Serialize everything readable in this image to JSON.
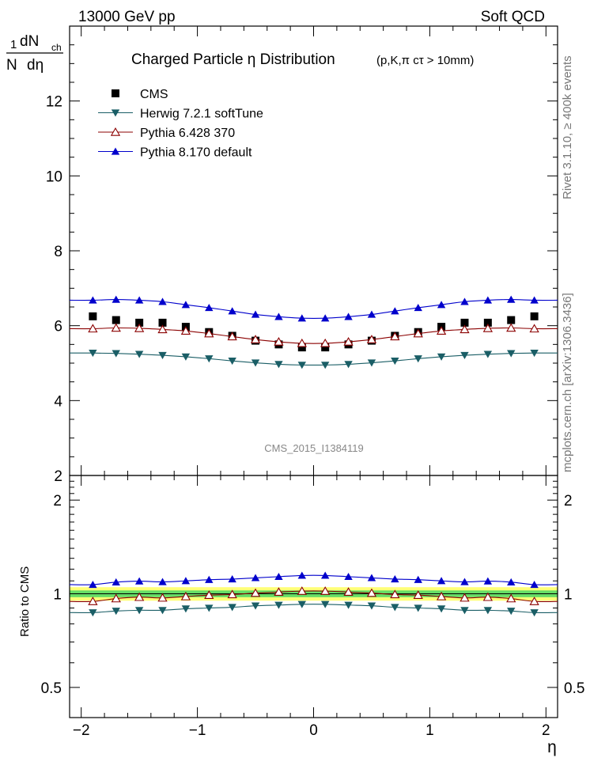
{
  "header": {
    "left": "13000 GeV pp",
    "right": "Soft QCD"
  },
  "side_labels": {
    "right_top": "Rivet 3.1.10, ≥ 400k events",
    "right_bottom": "mcplots.cern.ch [arXiv:1306.3436]"
  },
  "chart_data": [
    {
      "type": "scatter",
      "panel": "main",
      "title": "Charged Particle  η Distribution",
      "subtitle": "(p,K,π cτ > 10mm)",
      "watermark": "CMS_2015_I1384119",
      "ylabel": "1/N dN_ch/dη",
      "ylabel_parts": {
        "one": "1",
        "dn": "dN",
        "ch": "ch",
        "n": "N",
        "deta": "dη"
      },
      "xlim": [
        -2.1,
        2.1
      ],
      "ylim": [
        2,
        14
      ],
      "yticks": [
        2,
        4,
        6,
        8,
        10,
        12
      ],
      "x": [
        -1.9,
        -1.7,
        -1.5,
        -1.3,
        -1.1,
        -0.9,
        -0.7,
        -0.5,
        -0.3,
        -0.1,
        0.1,
        0.3,
        0.5,
        0.7,
        0.9,
        1.1,
        1.3,
        1.5,
        1.7,
        1.9
      ],
      "series": [
        {
          "name": "CMS",
          "marker": "square",
          "color": "#000000",
          "values": [
            6.25,
            6.15,
            6.08,
            6.08,
            5.97,
            5.83,
            5.73,
            5.6,
            5.5,
            5.42,
            5.42,
            5.5,
            5.6,
            5.73,
            5.83,
            5.97,
            6.08,
            6.08,
            6.15,
            6.25
          ]
        },
        {
          "name": "Herwig 7.2.1 softTune",
          "marker": "triangle-down",
          "color": "#1a5e66",
          "values": [
            5.27,
            5.26,
            5.24,
            5.21,
            5.17,
            5.12,
            5.06,
            5.01,
            4.97,
            4.95,
            4.95,
            4.97,
            5.01,
            5.06,
            5.12,
            5.17,
            5.21,
            5.24,
            5.26,
            5.27
          ]
        },
        {
          "name": "Pythia 6.428 370",
          "marker": "triangle-up-open",
          "color": "#8b0000",
          "values": [
            5.92,
            5.94,
            5.93,
            5.9,
            5.86,
            5.79,
            5.71,
            5.63,
            5.57,
            5.53,
            5.53,
            5.57,
            5.63,
            5.71,
            5.79,
            5.86,
            5.9,
            5.93,
            5.94,
            5.92
          ]
        },
        {
          "name": "Pythia 8.170 default",
          "marker": "triangle-up",
          "color": "#0000cc",
          "values": [
            6.68,
            6.7,
            6.68,
            6.64,
            6.56,
            6.48,
            6.39,
            6.3,
            6.24,
            6.2,
            6.2,
            6.24,
            6.3,
            6.39,
            6.48,
            6.56,
            6.64,
            6.68,
            6.7,
            6.68
          ]
        }
      ]
    },
    {
      "type": "line",
      "panel": "ratio",
      "ylabel": "Ratio to CMS",
      "xlabel": "η",
      "xlim": [
        -2.1,
        2.1
      ],
      "ylim": [
        0.4,
        2.4
      ],
      "scale": "log",
      "yticks": [
        0.5,
        1,
        2
      ],
      "ytick_labels": [
        "0.5",
        "1",
        "2"
      ],
      "xticks": [
        -2,
        -1,
        0,
        1,
        2
      ],
      "xtick_labels": [
        "−2",
        "−1",
        "0",
        "1",
        "2"
      ],
      "band_inner": [
        0.975,
        1.025
      ],
      "band_outer": [
        0.95,
        1.05
      ],
      "band_colors": {
        "inner": "#66dd66",
        "outer": "#ffff77"
      },
      "x": [
        -1.9,
        -1.7,
        -1.5,
        -1.3,
        -1.1,
        -0.9,
        -0.7,
        -0.5,
        -0.3,
        -0.1,
        0.1,
        0.3,
        0.5,
        0.7,
        0.9,
        1.1,
        1.3,
        1.5,
        1.7,
        1.9
      ],
      "series": [
        {
          "name": "Herwig 7.2.1 softTune",
          "marker": "triangle-down",
          "color": "#1a5e66",
          "values": [
            0.87,
            0.88,
            0.885,
            0.885,
            0.895,
            0.9,
            0.905,
            0.915,
            0.92,
            0.925,
            0.925,
            0.92,
            0.915,
            0.905,
            0.9,
            0.895,
            0.885,
            0.885,
            0.88,
            0.87
          ]
        },
        {
          "name": "Pythia 6.428 370",
          "marker": "triangle-up-open",
          "color": "#8b0000",
          "values": [
            0.945,
            0.965,
            0.975,
            0.97,
            0.98,
            0.99,
            0.995,
            1.005,
            1.013,
            1.02,
            1.02,
            1.013,
            1.005,
            0.995,
            0.99,
            0.98,
            0.97,
            0.975,
            0.965,
            0.945
          ]
        },
        {
          "name": "Pythia 8.170 default",
          "marker": "triangle-up",
          "color": "#0000cc",
          "values": [
            1.07,
            1.09,
            1.098,
            1.092,
            1.1,
            1.11,
            1.115,
            1.125,
            1.135,
            1.145,
            1.145,
            1.135,
            1.125,
            1.115,
            1.11,
            1.1,
            1.092,
            1.098,
            1.09,
            1.07
          ]
        }
      ]
    }
  ]
}
